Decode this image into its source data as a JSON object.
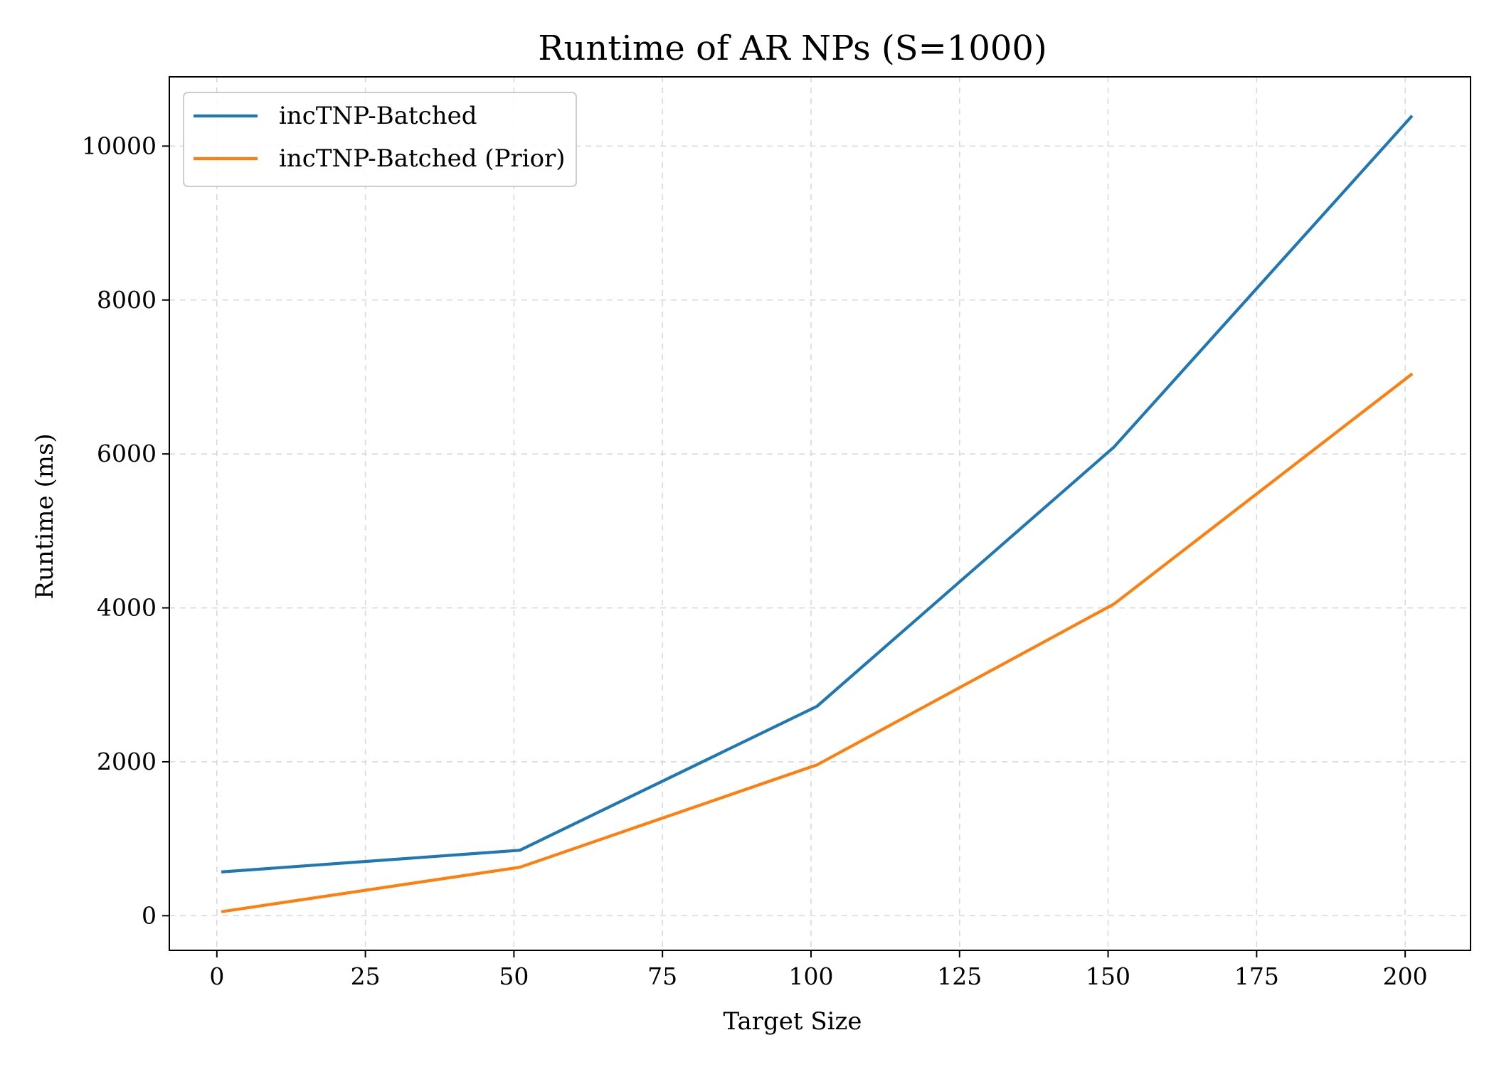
{
  "chart_data": {
    "type": "line",
    "title": "Runtime of AR NPs (S=1000)",
    "xlabel": "Target Size",
    "ylabel": "Runtime (ms)",
    "xlim": [
      -8,
      211
    ],
    "ylim": [
      -450,
      10900
    ],
    "xticks": [
      0,
      25,
      50,
      75,
      100,
      125,
      150,
      175,
      200
    ],
    "yticks": [
      0,
      2000,
      4000,
      6000,
      8000,
      10000
    ],
    "grid": true,
    "legend_position": "top-left",
    "x": [
      1,
      51,
      101,
      151,
      201
    ],
    "series": [
      {
        "name": "incTNP-Batched",
        "color": "#1f77b4",
        "values": [
          570,
          850,
          2720,
          6090,
          10380
        ]
      },
      {
        "name": "incTNP-Batched (Prior)",
        "color": "#ff7f0e",
        "values": [
          55,
          630,
          1960,
          4050,
          7030
        ]
      }
    ]
  }
}
